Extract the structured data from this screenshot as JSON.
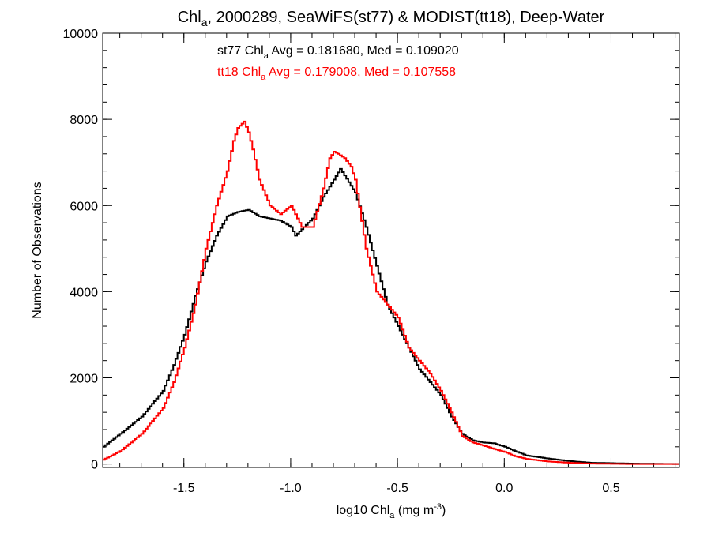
{
  "chart_data": {
    "type": "line",
    "step": true,
    "title": {
      "pre": "Chl",
      "sub": "a",
      "post": ", 2000289, SeaWiFS(st77) & MODIST(tt18), Deep-Water"
    },
    "xlabel": {
      "pre": "log10 Chl",
      "sub": "a",
      "mid": " (mg m",
      "sup": "-3",
      "post": ")"
    },
    "ylabel": "Number of Observations",
    "xlim": [
      -1.88,
      0.82
    ],
    "ylim": [
      -80,
      10000
    ],
    "xticks": [
      -1.5,
      -1.0,
      -0.5,
      0.0,
      0.5
    ],
    "xtick_labels": [
      "-1.5",
      "-1.0",
      "-0.5",
      "0.0",
      "0.5"
    ],
    "yticks": [
      0,
      2000,
      4000,
      6000,
      8000,
      10000
    ],
    "ytick_labels": [
      "0",
      "2000",
      "4000",
      "6000",
      "8000",
      "10000"
    ],
    "grid": false,
    "series": [
      {
        "name": "st77",
        "color": "#000000",
        "annotation": {
          "pre": "st77 Chl",
          "sub": "a",
          "post": " Avg = 0.181680, Med = 0.109020"
        },
        "x": [
          -1.88,
          -1.8,
          -1.7,
          -1.6,
          -1.55,
          -1.5,
          -1.45,
          -1.4,
          -1.35,
          -1.3,
          -1.25,
          -1.2,
          -1.15,
          -1.1,
          -1.05,
          -1.0,
          -0.98,
          -0.95,
          -0.9,
          -0.85,
          -0.8,
          -0.77,
          -0.75,
          -0.7,
          -0.65,
          -0.6,
          -0.55,
          -0.5,
          -0.45,
          -0.4,
          -0.35,
          -0.3,
          -0.25,
          -0.2,
          -0.15,
          -0.1,
          -0.05,
          0.0,
          0.05,
          0.1,
          0.2,
          0.3,
          0.4,
          0.5,
          0.6,
          0.7,
          0.82
        ],
        "y": [
          400,
          700,
          1100,
          1700,
          2300,
          3000,
          3900,
          4700,
          5300,
          5750,
          5850,
          5900,
          5750,
          5700,
          5650,
          5500,
          5300,
          5450,
          5700,
          6200,
          6600,
          6850,
          6700,
          6300,
          5500,
          4600,
          3700,
          3200,
          2700,
          2200,
          1900,
          1600,
          1100,
          700,
          550,
          500,
          480,
          400,
          300,
          200,
          130,
          70,
          30,
          20,
          10,
          5,
          0
        ]
      },
      {
        "name": "tt18",
        "color": "#ff0000",
        "annotation": {
          "pre": "tt18 Chl",
          "sub": "a",
          "post": " Avg = 0.179008, Med = 0.107558"
        },
        "x": [
          -1.88,
          -1.8,
          -1.7,
          -1.6,
          -1.55,
          -1.5,
          -1.45,
          -1.4,
          -1.35,
          -1.3,
          -1.27,
          -1.25,
          -1.22,
          -1.2,
          -1.18,
          -1.15,
          -1.1,
          -1.05,
          -1.0,
          -0.98,
          -0.95,
          -0.9,
          -0.85,
          -0.82,
          -0.8,
          -0.78,
          -0.75,
          -0.72,
          -0.7,
          -0.65,
          -0.6,
          -0.55,
          -0.5,
          -0.45,
          -0.4,
          -0.35,
          -0.3,
          -0.25,
          -0.2,
          -0.15,
          -0.1,
          -0.05,
          0.0,
          0.05,
          0.1,
          0.2,
          0.3,
          0.4,
          0.5,
          0.6,
          0.7,
          0.82
        ],
        "y": [
          100,
          300,
          700,
          1300,
          1900,
          2700,
          3700,
          5000,
          6000,
          6800,
          7500,
          7800,
          7950,
          7700,
          7300,
          6600,
          6000,
          5800,
          6000,
          5800,
          5500,
          5500,
          6400,
          7100,
          7250,
          7200,
          7100,
          6900,
          6600,
          5000,
          4000,
          3700,
          3400,
          2700,
          2400,
          2100,
          1700,
          1200,
          650,
          500,
          430,
          350,
          280,
          180,
          120,
          60,
          30,
          10,
          5,
          0,
          0,
          0
        ]
      }
    ]
  }
}
